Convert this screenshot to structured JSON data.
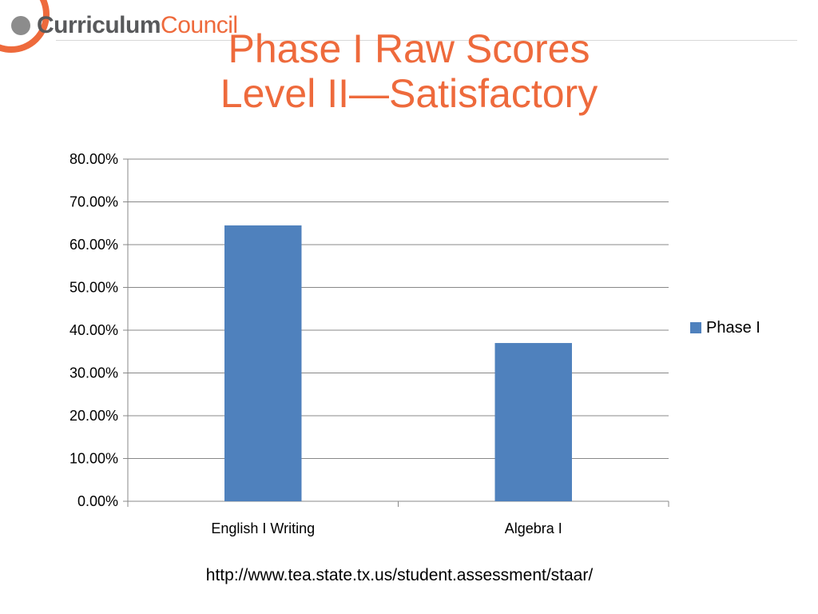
{
  "logo": {
    "part1": "Curriculum",
    "part2": "Council"
  },
  "title": {
    "line1": "Phase I Raw Scores",
    "line2": "Level II—Satisfactory"
  },
  "colors": {
    "accent": "#ee6a3c",
    "bar": "#4f81bd",
    "grid": "#888888",
    "logo_gray": "#58595b"
  },
  "chart_data": {
    "type": "bar",
    "title": "",
    "xlabel": "",
    "ylabel": "",
    "categories": [
      "English I Writing",
      "Algebra I"
    ],
    "series": [
      {
        "name": "Phase I",
        "values": [
          0.645,
          0.37
        ]
      }
    ],
    "ylim": [
      0,
      0.8
    ],
    "y_ticks": [
      0,
      0.1,
      0.2,
      0.3,
      0.4,
      0.5,
      0.6,
      0.7,
      0.8
    ],
    "y_tick_labels": [
      "0.00%",
      "10.00%",
      "20.00%",
      "30.00%",
      "40.00%",
      "50.00%",
      "60.00%",
      "70.00%",
      "80.00%"
    ],
    "grid": true,
    "legend_position": "right"
  },
  "source": "http://www.tea.state.tx.us/student.assessment/staar/"
}
